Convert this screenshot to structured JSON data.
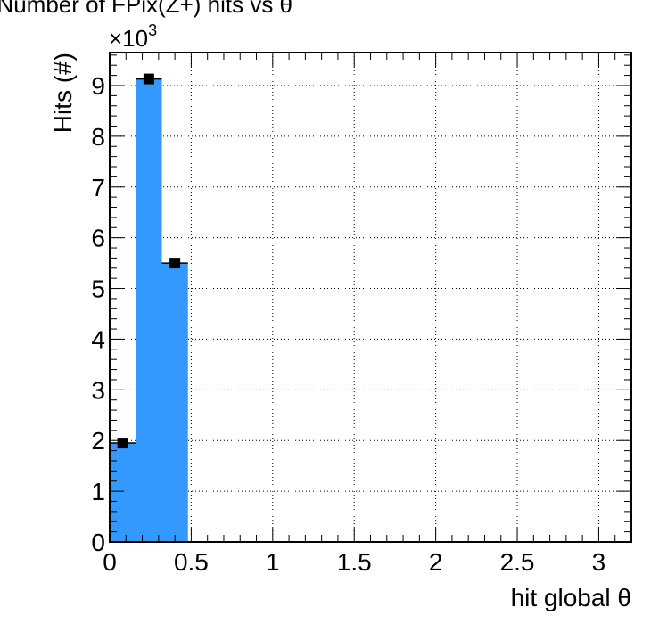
{
  "chart_data": {
    "type": "bar",
    "title": "Number of FPix(Z+) hits vs θ",
    "xlabel": "hit global θ",
    "ylabel": "Hits (#)",
    "y_multiplier_label": "×10",
    "y_multiplier_exponent": "3",
    "xlim": [
      0,
      3.2
    ],
    "ylim": [
      0,
      9.65
    ],
    "y_units": "thousands of hits",
    "x_ticks": [
      "0",
      "0.5",
      "1",
      "1.5",
      "2",
      "2.5",
      "3"
    ],
    "x_tick_values": [
      0,
      0.5,
      1,
      1.5,
      2,
      2.5,
      3
    ],
    "y_ticks": [
      "0",
      "1",
      "2",
      "3",
      "4",
      "5",
      "6",
      "7",
      "8",
      "9"
    ],
    "y_tick_values": [
      0,
      1,
      2,
      3,
      4,
      5,
      6,
      7,
      8,
      9
    ],
    "bins": [
      {
        "x_low": 0.0,
        "x_high": 0.16,
        "value": 1.95
      },
      {
        "x_low": 0.16,
        "x_high": 0.32,
        "value": 9.13
      },
      {
        "x_low": 0.32,
        "x_high": 0.48,
        "value": 5.5
      }
    ],
    "grid": true,
    "colors": {
      "fill": "#3399ff",
      "marker": "#000000"
    }
  }
}
